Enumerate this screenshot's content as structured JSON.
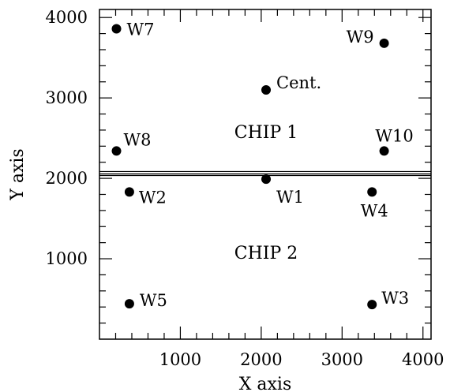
{
  "chart_data": {
    "type": "scatter",
    "title": "",
    "xlabel": "X axis",
    "ylabel": "Y axis",
    "xlim": [
      0,
      4100
    ],
    "ylim": [
      0,
      4100
    ],
    "xticks": [
      "1000",
      "2000",
      "3000",
      "4000"
    ],
    "yticks": [
      "1000",
      "2000",
      "3000",
      "4000"
    ],
    "grid": false,
    "points": [
      {
        "label": "W7",
        "x": 210,
        "y": 3860
      },
      {
        "label": "W9",
        "x": 3520,
        "y": 3680
      },
      {
        "label": "Cent.",
        "x": 2060,
        "y": 3100
      },
      {
        "label": "W8",
        "x": 210,
        "y": 2340
      },
      {
        "label": "W10",
        "x": 3520,
        "y": 2340
      },
      {
        "label": "W1",
        "x": 2060,
        "y": 1990
      },
      {
        "label": "W2",
        "x": 370,
        "y": 1830
      },
      {
        "label": "W4",
        "x": 3370,
        "y": 1830
      },
      {
        "label": "W5",
        "x": 370,
        "y": 440
      },
      {
        "label": "W3",
        "x": 3370,
        "y": 430
      }
    ],
    "region_labels": [
      "CHIP 1",
      "CHIP 2"
    ],
    "chip_gap_lines_y": [
      2035,
      2055,
      2085
    ]
  }
}
